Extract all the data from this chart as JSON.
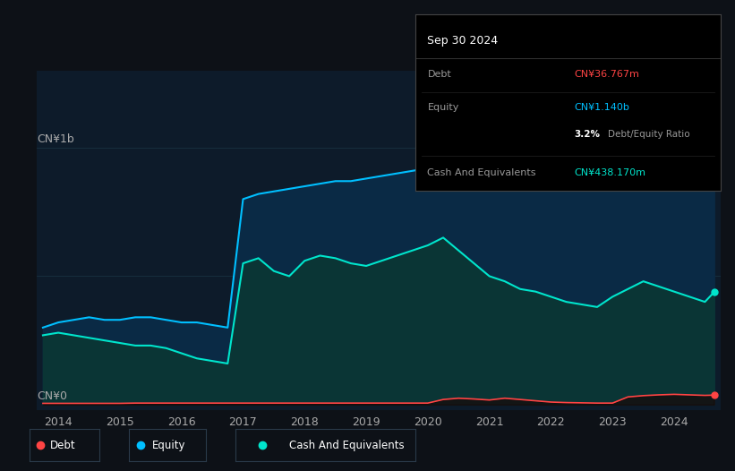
{
  "bg_color": "#0d1117",
  "plot_bg_color": "#0d1b2a",
  "title_box": {
    "date": "Sep 30 2024",
    "debt_label": "Debt",
    "debt_value": "CN¥36.767m",
    "debt_color": "#ff4444",
    "equity_label": "Equity",
    "equity_value": "CN¥1.140b",
    "equity_color": "#00bfff",
    "ratio_bold": "3.2%",
    "ratio_text": "Debt/Equity Ratio",
    "cash_label": "Cash And Equivalents",
    "cash_value": "CN¥438.170m",
    "cash_color": "#00e5cc"
  },
  "ylabel_top": "CN¥1b",
  "ylabel_bottom": "CN¥0",
  "x_ticks": [
    2014,
    2015,
    2016,
    2017,
    2018,
    2019,
    2020,
    2021,
    2022,
    2023,
    2024
  ],
  "equity_color": "#00bfff",
  "debt_color": "#ff4444",
  "cash_color": "#00e5cc",
  "equity_fill": "#0a2a45",
  "cash_fill": "#0a3535",
  "grid_color": "#1e3a4a",
  "years": [
    2013.75,
    2014.0,
    2014.25,
    2014.5,
    2014.75,
    2015.0,
    2015.25,
    2015.5,
    2015.75,
    2016.0,
    2016.25,
    2016.5,
    2016.75,
    2017.0,
    2017.25,
    2017.5,
    2017.75,
    2018.0,
    2018.25,
    2018.5,
    2018.75,
    2019.0,
    2019.25,
    2019.5,
    2019.75,
    2020.0,
    2020.25,
    2020.5,
    2020.75,
    2021.0,
    2021.25,
    2021.5,
    2021.75,
    2022.0,
    2022.25,
    2022.5,
    2022.75,
    2023.0,
    2023.25,
    2023.5,
    2023.75,
    2024.0,
    2024.25,
    2024.5,
    2024.65
  ],
  "equity": [
    0.3,
    0.32,
    0.33,
    0.34,
    0.33,
    0.33,
    0.34,
    0.34,
    0.33,
    0.32,
    0.32,
    0.31,
    0.3,
    0.8,
    0.82,
    0.83,
    0.84,
    0.85,
    0.86,
    0.87,
    0.87,
    0.88,
    0.89,
    0.9,
    0.91,
    0.92,
    0.93,
    0.94,
    0.95,
    0.96,
    0.97,
    0.98,
    0.99,
    0.99,
    1.0,
    1.01,
    1.02,
    1.03,
    1.05,
    1.07,
    1.08,
    1.09,
    1.1,
    1.12,
    1.14
  ],
  "cash": [
    0.27,
    0.28,
    0.27,
    0.26,
    0.25,
    0.24,
    0.23,
    0.23,
    0.22,
    0.2,
    0.18,
    0.17,
    0.16,
    0.55,
    0.57,
    0.52,
    0.5,
    0.56,
    0.58,
    0.57,
    0.55,
    0.54,
    0.56,
    0.58,
    0.6,
    0.62,
    0.65,
    0.6,
    0.55,
    0.5,
    0.48,
    0.45,
    0.44,
    0.42,
    0.4,
    0.39,
    0.38,
    0.42,
    0.45,
    0.48,
    0.46,
    0.44,
    0.42,
    0.4,
    0.438
  ],
  "debt": [
    0.005,
    0.005,
    0.005,
    0.005,
    0.005,
    0.005,
    0.006,
    0.006,
    0.006,
    0.006,
    0.006,
    0.006,
    0.006,
    0.006,
    0.006,
    0.006,
    0.006,
    0.006,
    0.006,
    0.006,
    0.006,
    0.006,
    0.006,
    0.006,
    0.006,
    0.006,
    0.02,
    0.025,
    0.022,
    0.018,
    0.025,
    0.02,
    0.015,
    0.01,
    0.008,
    0.007,
    0.006,
    0.006,
    0.03,
    0.035,
    0.038,
    0.04,
    0.038,
    0.036,
    0.037
  ]
}
